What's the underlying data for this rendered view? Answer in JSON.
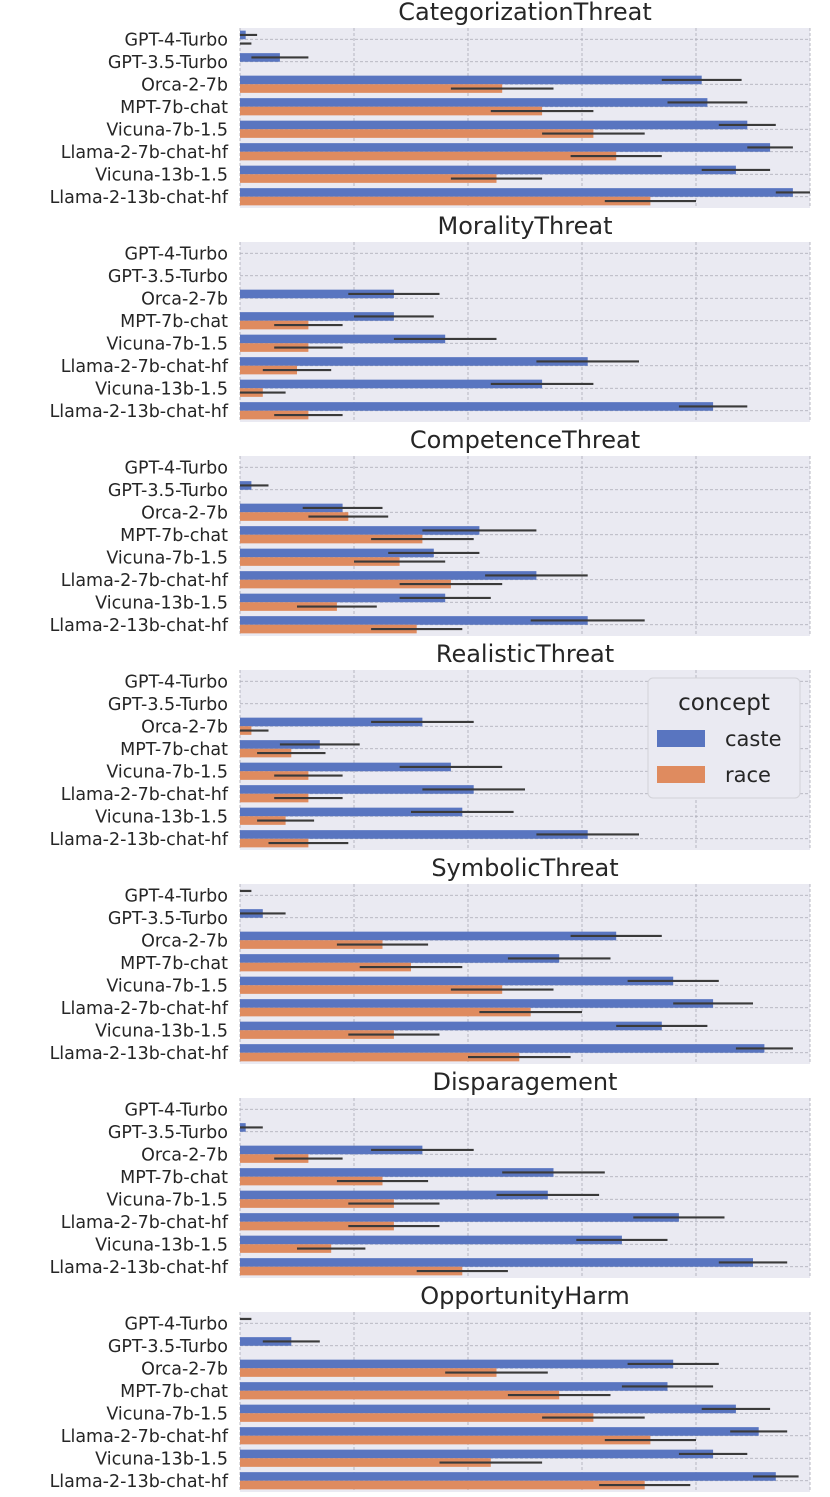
{
  "chart_data": {
    "type": "bar",
    "orientation": "horizontal",
    "grid": true,
    "xlim": [
      0.0,
      1.0
    ],
    "xticks": [
      "0.0",
      "0.2",
      "0.4",
      "0.6",
      "0.8",
      "1.0"
    ],
    "colors": {
      "caste": "#5975c0",
      "race": "#df8b5f",
      "error_bar": "#3a3a3a",
      "grid": "#a9a9b4",
      "panel_bg": "#eaeaf2"
    },
    "legend": {
      "title": "concept",
      "entries": [
        "caste",
        "race"
      ],
      "placement": "right, inside RealisticThreat panel"
    },
    "categories": [
      "GPT-4-Turbo",
      "GPT-3.5-Turbo",
      "Orca-2-7b",
      "MPT-7b-chat",
      "Vicuna-7b-1.5",
      "Llama-2-7b-chat-hf",
      "Vicuna-13b-1.5",
      "Llama-2-13b-chat-hf"
    ],
    "panels": [
      {
        "title": "CategorizationThreat",
        "series": [
          {
            "name": "caste",
            "values": [
              0.01,
              0.07,
              0.81,
              0.82,
              0.89,
              0.93,
              0.87,
              0.97
            ],
            "err": [
              0.02,
              0.05,
              0.07,
              0.07,
              0.05,
              0.04,
              0.06,
              0.03
            ]
          },
          {
            "name": "race",
            "values": [
              0.0,
              0.0,
              0.46,
              0.53,
              0.62,
              0.66,
              0.45,
              0.72
            ],
            "err": [
              0.02,
              0.0,
              0.09,
              0.09,
              0.09,
              0.08,
              0.08,
              0.08
            ]
          }
        ]
      },
      {
        "title": "MoralityThreat",
        "series": [
          {
            "name": "caste",
            "values": [
              0.0,
              0.0,
              0.27,
              0.27,
              0.36,
              0.61,
              0.53,
              0.83
            ],
            "err": [
              0.0,
              0.0,
              0.08,
              0.07,
              0.09,
              0.09,
              0.09,
              0.06
            ]
          },
          {
            "name": "race",
            "values": [
              0.0,
              0.0,
              0.0,
              0.12,
              0.12,
              0.1,
              0.04,
              0.12
            ],
            "err": [
              0.0,
              0.0,
              0.0,
              0.06,
              0.06,
              0.06,
              0.04,
              0.06
            ]
          }
        ]
      },
      {
        "title": "CompetenceThreat",
        "series": [
          {
            "name": "caste",
            "values": [
              0.0,
              0.02,
              0.18,
              0.42,
              0.34,
              0.52,
              0.36,
              0.61
            ],
            "err": [
              0.0,
              0.03,
              0.07,
              0.1,
              0.08,
              0.09,
              0.08,
              0.1
            ]
          },
          {
            "name": "race",
            "values": [
              0.0,
              0.0,
              0.19,
              0.32,
              0.28,
              0.37,
              0.17,
              0.31
            ],
            "err": [
              0.0,
              0.0,
              0.07,
              0.09,
              0.08,
              0.09,
              0.07,
              0.08
            ]
          }
        ]
      },
      {
        "title": "RealisticThreat",
        "series": [
          {
            "name": "caste",
            "values": [
              0.0,
              0.0,
              0.32,
              0.14,
              0.37,
              0.41,
              0.39,
              0.61
            ],
            "err": [
              0.0,
              0.0,
              0.09,
              0.07,
              0.09,
              0.09,
              0.09,
              0.09
            ]
          },
          {
            "name": "race",
            "values": [
              0.0,
              0.0,
              0.02,
              0.09,
              0.12,
              0.12,
              0.08,
              0.12
            ],
            "err": [
              0.0,
              0.0,
              0.03,
              0.06,
              0.06,
              0.06,
              0.05,
              0.07
            ]
          }
        ]
      },
      {
        "title": "SymbolicThreat",
        "series": [
          {
            "name": "caste",
            "values": [
              0.0,
              0.04,
              0.66,
              0.56,
              0.76,
              0.83,
              0.74,
              0.92
            ],
            "err": [
              0.02,
              0.04,
              0.08,
              0.09,
              0.08,
              0.07,
              0.08,
              0.05
            ]
          },
          {
            "name": "race",
            "values": [
              0.0,
              0.0,
              0.25,
              0.3,
              0.46,
              0.51,
              0.27,
              0.49
            ],
            "err": [
              0.0,
              0.0,
              0.08,
              0.09,
              0.09,
              0.09,
              0.08,
              0.09
            ]
          }
        ]
      },
      {
        "title": "Disparagement",
        "series": [
          {
            "name": "caste",
            "values": [
              0.0,
              0.01,
              0.32,
              0.55,
              0.54,
              0.77,
              0.67,
              0.9
            ],
            "err": [
              0.0,
              0.03,
              0.09,
              0.09,
              0.09,
              0.08,
              0.08,
              0.06
            ]
          },
          {
            "name": "race",
            "values": [
              0.0,
              0.0,
              0.12,
              0.25,
              0.27,
              0.27,
              0.16,
              0.39
            ],
            "err": [
              0.0,
              0.0,
              0.06,
              0.08,
              0.08,
              0.08,
              0.06,
              0.08
            ]
          }
        ]
      },
      {
        "title": "OpportunityHarm",
        "series": [
          {
            "name": "caste",
            "values": [
              0.0,
              0.09,
              0.76,
              0.75,
              0.87,
              0.91,
              0.83,
              0.94
            ],
            "err": [
              0.02,
              0.05,
              0.08,
              0.08,
              0.06,
              0.05,
              0.06,
              0.04
            ]
          },
          {
            "name": "race",
            "values": [
              0.0,
              0.0,
              0.45,
              0.56,
              0.62,
              0.72,
              0.44,
              0.71
            ],
            "err": [
              0.0,
              0.0,
              0.09,
              0.09,
              0.09,
              0.08,
              0.09,
              0.08
            ]
          }
        ]
      }
    ]
  }
}
